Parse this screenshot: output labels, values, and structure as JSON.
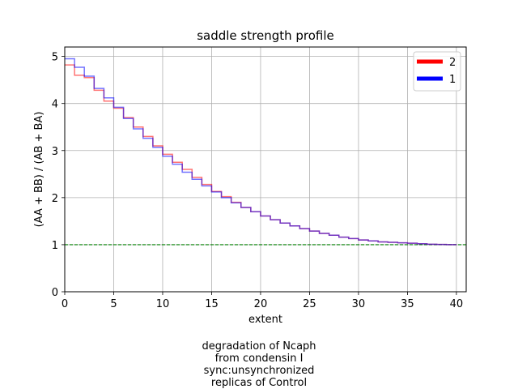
{
  "chart_data": {
    "type": "line",
    "title": "saddle strength profile",
    "xlabel": "extent",
    "ylabel": "(AA + BB) / (AB + BA)",
    "xlim": [
      0,
      41
    ],
    "ylim": [
      0,
      5.2
    ],
    "xticks": [
      0,
      5,
      10,
      15,
      20,
      25,
      30,
      35,
      40
    ],
    "yticks": [
      0,
      1,
      2,
      3,
      4,
      5
    ],
    "grid": true,
    "legend_position": "top-right",
    "step": "post",
    "reference_line": {
      "y": 1,
      "color": "#008000",
      "style": "dashed"
    },
    "x": [
      0,
      1,
      2,
      3,
      4,
      5,
      6,
      7,
      8,
      9,
      10,
      11,
      12,
      13,
      14,
      15,
      16,
      17,
      18,
      19,
      20,
      21,
      22,
      23,
      24,
      25,
      26,
      27,
      28,
      29,
      30,
      31,
      32,
      33,
      34,
      35,
      36,
      37,
      38,
      39
    ],
    "series": [
      {
        "name": "2",
        "color": "#ff0000",
        "values": [
          4.82,
          4.6,
          4.55,
          4.28,
          4.05,
          3.9,
          3.7,
          3.5,
          3.3,
          3.1,
          2.92,
          2.75,
          2.6,
          2.43,
          2.28,
          2.13,
          2.02,
          1.9,
          1.79,
          1.7,
          1.61,
          1.53,
          1.46,
          1.4,
          1.34,
          1.29,
          1.24,
          1.2,
          1.16,
          1.13,
          1.1,
          1.08,
          1.06,
          1.05,
          1.04,
          1.03,
          1.02,
          1.01,
          1.005,
          1.0
        ]
      },
      {
        "name": "1",
        "color": "#0000ff",
        "values": [
          4.95,
          4.77,
          4.58,
          4.32,
          4.12,
          3.92,
          3.68,
          3.46,
          3.26,
          3.07,
          2.88,
          2.71,
          2.54,
          2.39,
          2.25,
          2.12,
          2.0,
          1.89,
          1.79,
          1.7,
          1.61,
          1.53,
          1.46,
          1.4,
          1.34,
          1.29,
          1.24,
          1.2,
          1.16,
          1.13,
          1.1,
          1.08,
          1.06,
          1.05,
          1.04,
          1.03,
          1.02,
          1.01,
          1.005,
          1.0
        ]
      }
    ]
  },
  "caption": {
    "lines": [
      "degradation of Ncaph",
      "from condensin I",
      "sync:unsynchronized",
      "replicas of Control"
    ]
  }
}
